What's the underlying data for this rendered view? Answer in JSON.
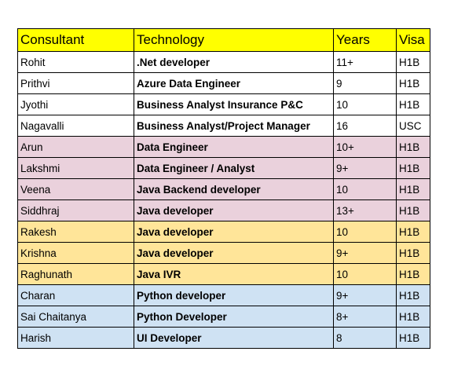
{
  "table": {
    "headers": {
      "consultant": "Consultant",
      "technology": "Technology",
      "years": "Years",
      "visa": "Visa"
    },
    "header_color": "#ffff00",
    "group_colors": {
      "white": "#ffffff",
      "pink": "#ead1dc",
      "yellow": "#ffe599",
      "blue": "#cfe2f3"
    },
    "rows": [
      {
        "consultant": "Rohit",
        "technology": ".Net developer",
        "years": "11+",
        "visa": "H1B",
        "group": "white"
      },
      {
        "consultant": "Prithvi",
        "technology": "Azure Data Engineer",
        "years": "9",
        "visa": "H1B",
        "group": "white"
      },
      {
        "consultant": "Jyothi",
        "technology": "Business Analyst Insurance P&C",
        "years": "10",
        "visa": "H1B",
        "group": "white"
      },
      {
        "consultant": "Nagavalli",
        "technology": "Business Analyst/Project Manager",
        "years": "16",
        "visa": "USC",
        "group": "white"
      },
      {
        "consultant": "Arun",
        "technology": "Data Engineer",
        "years": "10+",
        "visa": "H1B",
        "group": "pink"
      },
      {
        "consultant": "Lakshmi",
        "technology": "Data Engineer / Analyst",
        "years": "9+",
        "visa": "H1B",
        "group": "pink"
      },
      {
        "consultant": "Veena",
        "technology": "Java Backend developer",
        "years": "10",
        "visa": "H1B",
        "group": "pink"
      },
      {
        "consultant": "Siddhraj",
        "technology": "Java developer",
        "years": "13+",
        "visa": "H1B",
        "group": "pink"
      },
      {
        "consultant": "Rakesh",
        "technology": "Java developer",
        "years": "10",
        "visa": "H1B",
        "group": "yellow"
      },
      {
        "consultant": "Krishna",
        "technology": "Java developer",
        "years": "9+",
        "visa": "H1B",
        "group": "yellow"
      },
      {
        "consultant": "Raghunath",
        "technology": "Java IVR",
        "years": "10",
        "visa": "H1B",
        "group": "yellow"
      },
      {
        "consultant": "Charan",
        "technology": "Python developer",
        "years": "9+",
        "visa": "H1B",
        "group": "blue"
      },
      {
        "consultant": "Sai Chaitanya",
        "technology": "Python Developer",
        "years": "8+",
        "visa": "H1B",
        "group": "blue"
      },
      {
        "consultant": "Harish",
        "technology": "UI Developer",
        "years": "8",
        "visa": "H1B",
        "group": "blue"
      }
    ]
  }
}
